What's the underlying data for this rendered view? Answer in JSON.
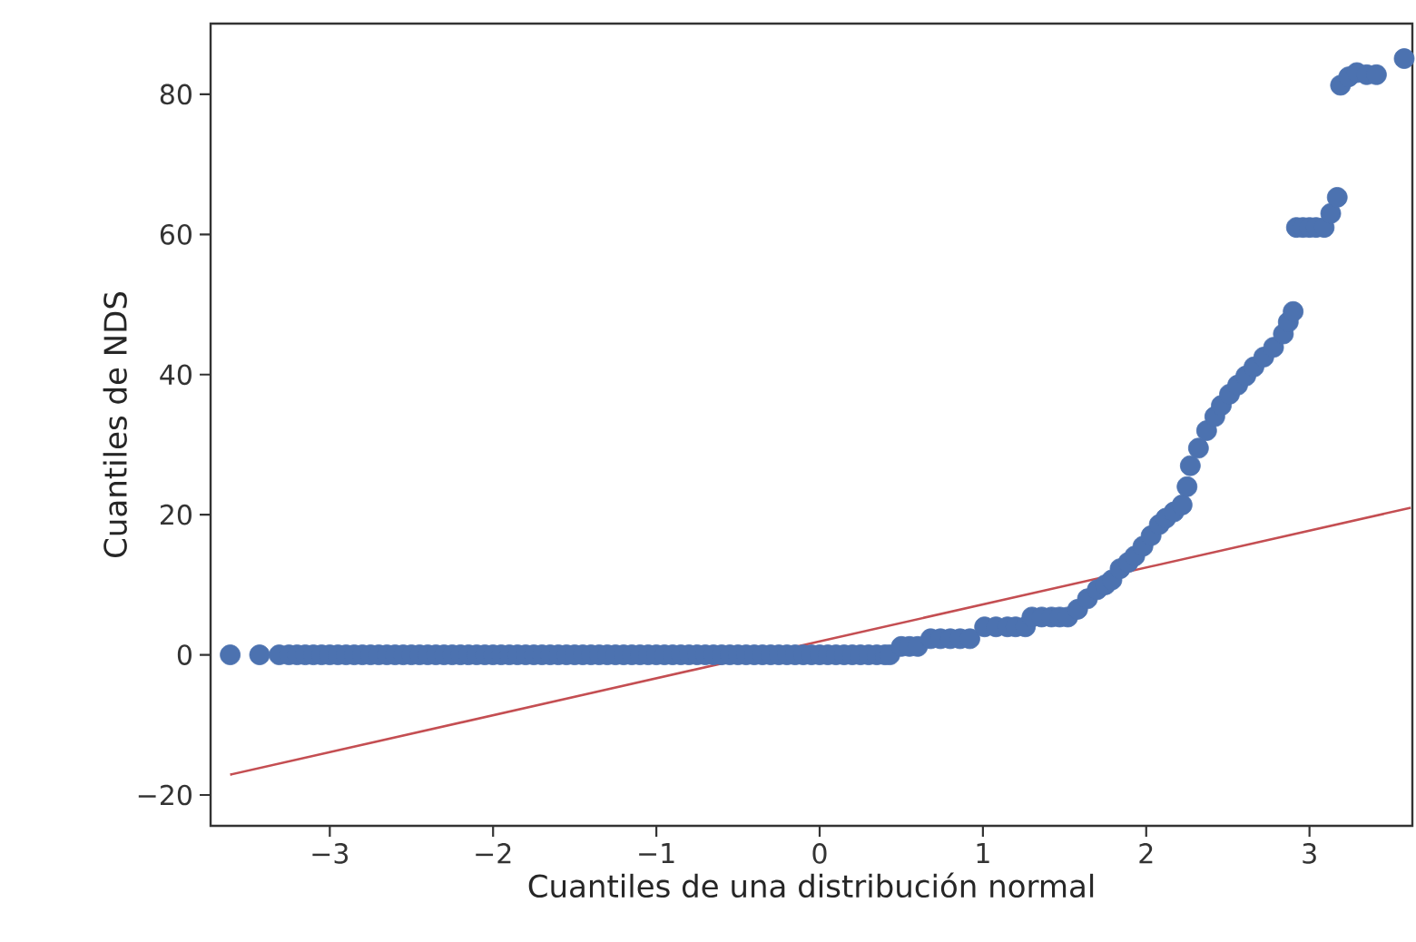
{
  "chart_data": {
    "type": "scatter",
    "xlabel": "Cuantiles de una distribución normal",
    "ylabel": "Cuantiles de NDS",
    "xlim": [
      -3.73,
      3.63
    ],
    "ylim": [
      -24.4,
      90.1
    ],
    "xticks": [
      {
        "value": -3,
        "label": "−3"
      },
      {
        "value": -2,
        "label": "−2"
      },
      {
        "value": -1,
        "label": "−1"
      },
      0,
      1,
      2,
      3
    ],
    "yticks": [
      {
        "value": -20,
        "label": "−20"
      },
      0,
      20,
      40,
      60,
      80
    ],
    "grid": false,
    "series": [
      {
        "color": "#4c72b0",
        "marker": "circle",
        "x": [
          -3.61,
          -3.43,
          -3.31,
          -3.25,
          -3.2,
          -3.15,
          -3.1,
          -3.05,
          -3.0,
          -2.95,
          -2.9,
          -2.85,
          -2.8,
          -2.75,
          -2.7,
          -2.65,
          -2.6,
          -2.55,
          -2.5,
          -2.45,
          -2.4,
          -2.35,
          -2.3,
          -2.25,
          -2.2,
          -2.15,
          -2.1,
          -2.05,
          -2.0,
          -1.95,
          -1.9,
          -1.85,
          -1.8,
          -1.75,
          -1.7,
          -1.65,
          -1.6,
          -1.55,
          -1.5,
          -1.45,
          -1.4,
          -1.35,
          -1.3,
          -1.25,
          -1.2,
          -1.15,
          -1.1,
          -1.05,
          -1.0,
          -0.95,
          -0.9,
          -0.85,
          -0.8,
          -0.75,
          -0.7,
          -0.65,
          -0.6,
          -0.55,
          -0.5,
          -0.45,
          -0.4,
          -0.35,
          -0.3,
          -0.25,
          -0.2,
          -0.15,
          -0.1,
          -0.05,
          0.0,
          0.05,
          0.1,
          0.15,
          0.2,
          0.25,
          0.3,
          0.35,
          0.4,
          0.43,
          0.5,
          0.55,
          0.6,
          0.68,
          0.74,
          0.8,
          0.86,
          0.92,
          1.01,
          1.08,
          1.15,
          1.2,
          1.26,
          1.3,
          1.36,
          1.42,
          1.47,
          1.52,
          1.58,
          1.64,
          1.7,
          1.75,
          1.79,
          1.84,
          1.89,
          1.93,
          1.98,
          2.03,
          2.08,
          2.12,
          2.17,
          2.22,
          2.25,
          2.27,
          2.32,
          2.37,
          2.42,
          2.46,
          2.51,
          2.56,
          2.61,
          2.66,
          2.72,
          2.78,
          2.84,
          2.87,
          2.9,
          2.92,
          2.96,
          3.0,
          3.04,
          3.09,
          3.13,
          3.17,
          3.19,
          3.24,
          3.29,
          3.35,
          3.41,
          3.58
        ],
        "values": [
          0,
          0,
          0,
          0,
          0,
          0,
          0,
          0,
          0,
          0,
          0,
          0,
          0,
          0,
          0,
          0,
          0,
          0,
          0,
          0,
          0,
          0,
          0,
          0,
          0,
          0,
          0,
          0,
          0,
          0,
          0,
          0,
          0,
          0,
          0,
          0,
          0,
          0,
          0,
          0,
          0,
          0,
          0,
          0,
          0,
          0,
          0,
          0,
          0,
          0,
          0,
          0,
          0,
          0,
          0,
          0,
          0,
          0,
          0,
          0,
          0,
          0,
          0,
          0,
          0,
          0,
          0,
          0,
          0,
          0,
          0,
          0,
          0,
          0,
          0,
          0,
          0,
          0,
          1.2,
          1.2,
          1.2,
          2.3,
          2.3,
          2.3,
          2.3,
          2.3,
          4,
          4,
          4,
          4,
          4,
          5.4,
          5.4,
          5.4,
          5.4,
          5.4,
          6.5,
          8,
          9.3,
          10,
          10.7,
          12.3,
          13.2,
          14.1,
          15.5,
          17,
          18.6,
          19.5,
          20.4,
          21.4,
          24,
          27,
          29.5,
          32,
          34,
          35.6,
          37.2,
          38.5,
          39.8,
          41.1,
          42.5,
          43.9,
          45.8,
          47.5,
          49,
          61,
          61,
          61,
          61,
          61,
          63,
          65.3,
          81.3,
          82.5,
          83.1,
          82.8,
          82.8,
          85.1
        ]
      },
      {
        "type": "line",
        "color": "#c44e52",
        "marker": "none",
        "x": [
          -3.61,
          3.62
        ],
        "values": [
          -17.1,
          21.0
        ]
      }
    ]
  }
}
